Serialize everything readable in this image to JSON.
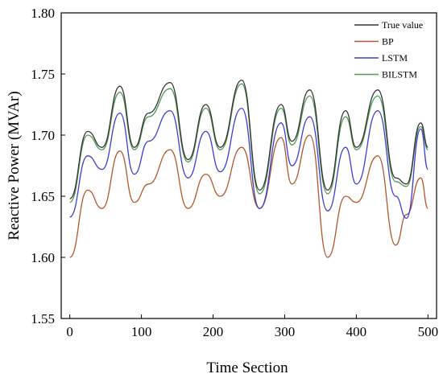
{
  "chart_data": {
    "type": "line",
    "xlabel": "Time Section",
    "ylabel": "Reactive Power (MVAr)",
    "xlim": [
      -12,
      512
    ],
    "ylim": [
      1.55,
      1.8
    ],
    "x_ticks": [
      0,
      100,
      200,
      300,
      400,
      500
    ],
    "y_ticks": [
      1.55,
      1.6,
      1.65,
      1.7,
      1.75,
      1.8
    ],
    "x_tick_labels": [
      "0",
      "100",
      "200",
      "300",
      "400",
      "500"
    ],
    "y_tick_labels": [
      "1.55",
      "1.60",
      "1.65",
      "1.70",
      "1.75",
      "1.80"
    ],
    "grid": false,
    "legend_position": "top-right",
    "x": [
      0,
      25,
      45,
      70,
      90,
      110,
      140,
      165,
      190,
      210,
      240,
      265,
      295,
      310,
      335,
      360,
      385,
      400,
      430,
      455,
      470,
      490,
      500
    ],
    "series": [
      {
        "name": "True value",
        "color": "#333333",
        "values": [
          1.648,
          1.703,
          1.69,
          1.74,
          1.69,
          1.718,
          1.743,
          1.68,
          1.725,
          1.69,
          1.745,
          1.655,
          1.725,
          1.695,
          1.737,
          1.655,
          1.72,
          1.69,
          1.737,
          1.665,
          1.66,
          1.71,
          1.69
        ]
      },
      {
        "name": "BP",
        "color": "#b5562a",
        "values": [
          1.6,
          1.655,
          1.64,
          1.687,
          1.645,
          1.66,
          1.688,
          1.64,
          1.668,
          1.65,
          1.69,
          1.64,
          1.698,
          1.66,
          1.7,
          1.6,
          1.65,
          1.645,
          1.683,
          1.61,
          1.635,
          1.665,
          1.64
        ]
      },
      {
        "name": "LSTM",
        "color": "#3c3cd6",
        "values": [
          1.633,
          1.683,
          1.672,
          1.718,
          1.668,
          1.695,
          1.72,
          1.665,
          1.703,
          1.67,
          1.722,
          1.64,
          1.71,
          1.675,
          1.715,
          1.638,
          1.69,
          1.66,
          1.72,
          1.65,
          1.632,
          1.705,
          1.672
        ]
      },
      {
        "name": "BILSTM",
        "color": "#4f9a55",
        "values": [
          1.645,
          1.7,
          1.688,
          1.735,
          1.688,
          1.715,
          1.738,
          1.678,
          1.722,
          1.688,
          1.742,
          1.652,
          1.722,
          1.692,
          1.732,
          1.652,
          1.715,
          1.688,
          1.732,
          1.662,
          1.658,
          1.707,
          1.688
        ]
      }
    ]
  }
}
